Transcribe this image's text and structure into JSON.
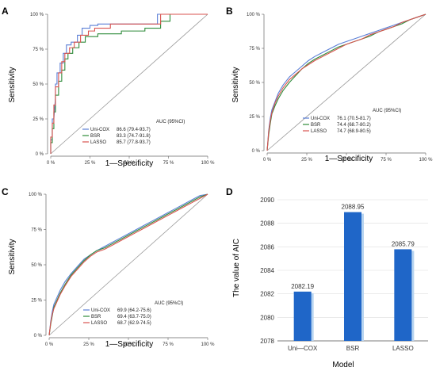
{
  "colors": {
    "uni_cox": "#5b7fd6",
    "bsr": "#2e8b3a",
    "lasso": "#d9534f",
    "diagonal": "#999999",
    "bar": "#1f66c8",
    "bar_shadow": "#b7d4f0",
    "grid": "#dddddd"
  },
  "chart_data": [
    {
      "panel": "A",
      "type": "line",
      "xlabel": "1—Specificity",
      "ylabel": "Sensitivity",
      "xlim": [
        0,
        100
      ],
      "ylim": [
        0,
        100
      ],
      "x_ticks": [
        "0 %",
        "25 %",
        "50 %",
        "75 %",
        "100 %"
      ],
      "y_ticks": [
        "0 %",
        "25 %",
        "50 %",
        "75 %",
        "100 %"
      ],
      "legend_header": "AUC (95%CI)",
      "legend_position": "bottom-right",
      "series": [
        {
          "name": "Uni-COX",
          "auc": "86.6 (79.4-93.7)",
          "color_key": "uni_cox",
          "x": [
            0,
            0,
            1,
            1,
            2,
            3,
            3,
            4,
            4,
            6,
            6,
            8,
            8,
            10,
            10,
            13,
            13,
            17,
            17,
            20,
            20,
            25,
            25,
            30,
            30,
            40,
            40,
            68,
            68,
            73,
            73,
            100
          ],
          "y": [
            0,
            10,
            10,
            25,
            25,
            40,
            50,
            50,
            58,
            58,
            65,
            65,
            72,
            72,
            78,
            78,
            80,
            80,
            85,
            85,
            90,
            90,
            92,
            92,
            93,
            93,
            93,
            93,
            100,
            100,
            100,
            100
          ]
        },
        {
          "name": "BSR",
          "auc": "83.3 (74.7-91.8)",
          "color_key": "bsr",
          "x": [
            0,
            0,
            1,
            1,
            2,
            2,
            3,
            3,
            5,
            5,
            7,
            7,
            9,
            9,
            11,
            11,
            14,
            14,
            18,
            18,
            22,
            22,
            30,
            30,
            45,
            45,
            60,
            60,
            70,
            70,
            76,
            76,
            100
          ],
          "y": [
            0,
            8,
            8,
            18,
            18,
            30,
            30,
            42,
            42,
            52,
            52,
            60,
            60,
            68,
            68,
            72,
            72,
            76,
            76,
            80,
            80,
            84,
            84,
            86,
            86,
            88,
            88,
            90,
            90,
            95,
            95,
            100,
            100
          ]
        },
        {
          "name": "LASSO",
          "auc": "85.7 (77.8-93.7)",
          "color_key": "lasso",
          "x": [
            0,
            0,
            1,
            1,
            2,
            2,
            3,
            3,
            5,
            5,
            7,
            7,
            9,
            9,
            12,
            12,
            15,
            15,
            19,
            19,
            24,
            24,
            28,
            28,
            38,
            38,
            70,
            70,
            100
          ],
          "y": [
            0,
            12,
            12,
            22,
            22,
            35,
            35,
            48,
            48,
            58,
            58,
            66,
            66,
            72,
            72,
            76,
            76,
            80,
            80,
            85,
            85,
            88,
            88,
            90,
            90,
            93,
            93,
            100,
            100
          ]
        }
      ]
    },
    {
      "panel": "B",
      "type": "line",
      "xlabel": "1—Specificity",
      "ylabel": "Sensitivity",
      "xlim": [
        0,
        100
      ],
      "ylim": [
        0,
        100
      ],
      "x_ticks": [
        "0 %",
        "25 %",
        "50 %",
        "75 %",
        "100 %"
      ],
      "y_ticks": [
        "0 %",
        "25 %",
        "50 %",
        "75 %",
        "100 %"
      ],
      "legend_header": "AUC (95%CI)",
      "legend_position": "bottom-right",
      "series": [
        {
          "name": "Uni-COX",
          "auc": "76.1 (70.5-81.7)",
          "color_key": "uni_cox",
          "x": [
            0,
            1,
            2,
            3,
            5,
            7,
            10,
            14,
            18,
            22,
            26,
            30,
            35,
            40,
            45,
            50,
            55,
            60,
            65,
            70,
            75,
            80,
            85,
            90,
            95,
            100
          ],
          "y": [
            0,
            15,
            24,
            30,
            36,
            42,
            48,
            54,
            58,
            62,
            66,
            69,
            72,
            75,
            78,
            80,
            82,
            84,
            86,
            88,
            90,
            92,
            94,
            96,
            98,
            100
          ]
        },
        {
          "name": "BSR",
          "auc": "74.4 (68.7-80.2)",
          "color_key": "bsr",
          "x": [
            0,
            1,
            2,
            3,
            5,
            7,
            10,
            14,
            18,
            22,
            26,
            30,
            35,
            40,
            45,
            50,
            55,
            60,
            65,
            70,
            75,
            80,
            85,
            90,
            95,
            100
          ],
          "y": [
            0,
            12,
            20,
            27,
            33,
            38,
            44,
            50,
            55,
            60,
            64,
            67,
            70,
            73,
            76,
            78,
            80,
            82,
            84,
            87,
            89,
            91,
            93,
            96,
            98,
            100
          ]
        },
        {
          "name": "LASSO",
          "auc": "74.7 (68.9-80.5)",
          "color_key": "lasso",
          "x": [
            0,
            1,
            2,
            3,
            5,
            7,
            10,
            14,
            18,
            22,
            26,
            30,
            35,
            40,
            45,
            50,
            55,
            60,
            65,
            70,
            75,
            80,
            85,
            90,
            95,
            100
          ],
          "y": [
            0,
            14,
            22,
            28,
            35,
            40,
            46,
            52,
            56,
            60,
            63,
            66,
            69,
            72,
            75,
            78,
            80,
            82,
            85,
            87,
            89,
            91,
            94,
            96,
            98,
            100
          ]
        }
      ]
    },
    {
      "panel": "C",
      "type": "line",
      "xlabel": "1—Specificity",
      "ylabel": "Sensitivity",
      "xlim": [
        0,
        100
      ],
      "ylim": [
        0,
        100
      ],
      "x_ticks": [
        "0 %",
        "25 %",
        "50 %",
        "75 %",
        "100 %"
      ],
      "y_ticks": [
        "0 %",
        "25 %",
        "50 %",
        "75 %",
        "100 %"
      ],
      "legend_header": "AUC (95%CI)",
      "legend_position": "bottom-right",
      "series": [
        {
          "name": "Uni-COX",
          "auc": "69.9 (64.2-75.6)",
          "color_key": "uni_cox",
          "x": [
            0,
            1,
            2,
            3,
            5,
            7,
            10,
            14,
            18,
            22,
            26,
            30,
            35,
            40,
            45,
            50,
            55,
            60,
            65,
            70,
            75,
            80,
            85,
            90,
            95,
            100
          ],
          "y": [
            0,
            10,
            17,
            22,
            27,
            32,
            38,
            44,
            49,
            54,
            57,
            60,
            63,
            66,
            69,
            72,
            75,
            78,
            81,
            84,
            87,
            90,
            93,
            96,
            99,
            100
          ]
        },
        {
          "name": "BSR",
          "auc": "69.4 (63.7-75.0)",
          "color_key": "bsr",
          "x": [
            0,
            1,
            2,
            3,
            5,
            7,
            10,
            14,
            18,
            22,
            26,
            30,
            35,
            40,
            45,
            50,
            55,
            60,
            65,
            70,
            75,
            80,
            85,
            90,
            95,
            100
          ],
          "y": [
            0,
            8,
            14,
            20,
            25,
            30,
            36,
            43,
            48,
            53,
            57,
            60,
            62,
            65,
            68,
            71,
            74,
            77,
            80,
            83,
            86,
            89,
            92,
            95,
            98,
            100
          ]
        },
        {
          "name": "LASSO",
          "auc": "68.7 (62.9-74.5)",
          "color_key": "lasso",
          "x": [
            0,
            1,
            2,
            3,
            5,
            7,
            10,
            14,
            18,
            22,
            26,
            30,
            35,
            40,
            45,
            50,
            55,
            60,
            65,
            70,
            75,
            80,
            85,
            90,
            95,
            100
          ],
          "y": [
            0,
            9,
            15,
            19,
            24,
            29,
            35,
            42,
            47,
            52,
            56,
            59,
            61,
            64,
            67,
            70,
            73,
            76,
            79,
            82,
            85,
            88,
            91,
            94,
            97,
            100
          ]
        }
      ]
    },
    {
      "panel": "D",
      "type": "bar",
      "categories": [
        "Uni—COX",
        "BSR",
        "LASSO"
      ],
      "values": [
        2082.19,
        2088.95,
        2085.79
      ],
      "value_labels": [
        "2082.19",
        "2088.95",
        "2085.79"
      ],
      "xlabel": "Model",
      "ylabel": "The value of AIC",
      "ylim": [
        2078,
        2090
      ],
      "y_ticks": [
        2078,
        2080,
        2082,
        2084,
        2086,
        2088,
        2090
      ],
      "grid": true
    }
  ]
}
